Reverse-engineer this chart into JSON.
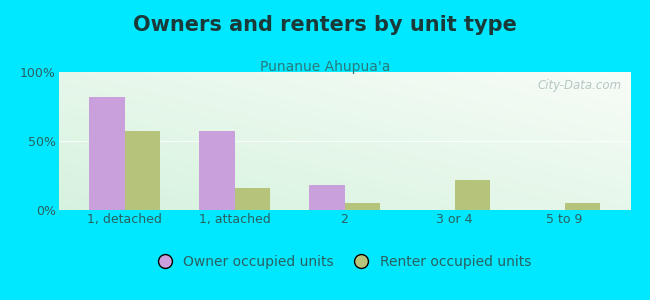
{
  "title": "Owners and renters by unit type",
  "subtitle": "Punanue Ahupua'a",
  "categories": [
    "1, detached",
    "1, attached",
    "2",
    "3 or 4",
    "5 to 9"
  ],
  "owner_values": [
    82,
    57,
    18,
    0,
    0
  ],
  "renter_values": [
    57,
    16,
    5,
    22,
    5
  ],
  "owner_color": "#c9a0dc",
  "renter_color": "#b5c47a",
  "outer_bg": "#00e8ff",
  "ylim": [
    0,
    100
  ],
  "yticks": [
    0,
    50,
    100
  ],
  "ytick_labels": [
    "0%",
    "50%",
    "100%"
  ],
  "bar_width": 0.32,
  "title_fontsize": 15,
  "subtitle_fontsize": 10,
  "legend_fontsize": 10,
  "tick_fontsize": 9,
  "title_color": "#1a3a3a",
  "subtitle_color": "#2a7a7a",
  "tick_color": "#2a6060",
  "watermark_text": "City-Data.com"
}
